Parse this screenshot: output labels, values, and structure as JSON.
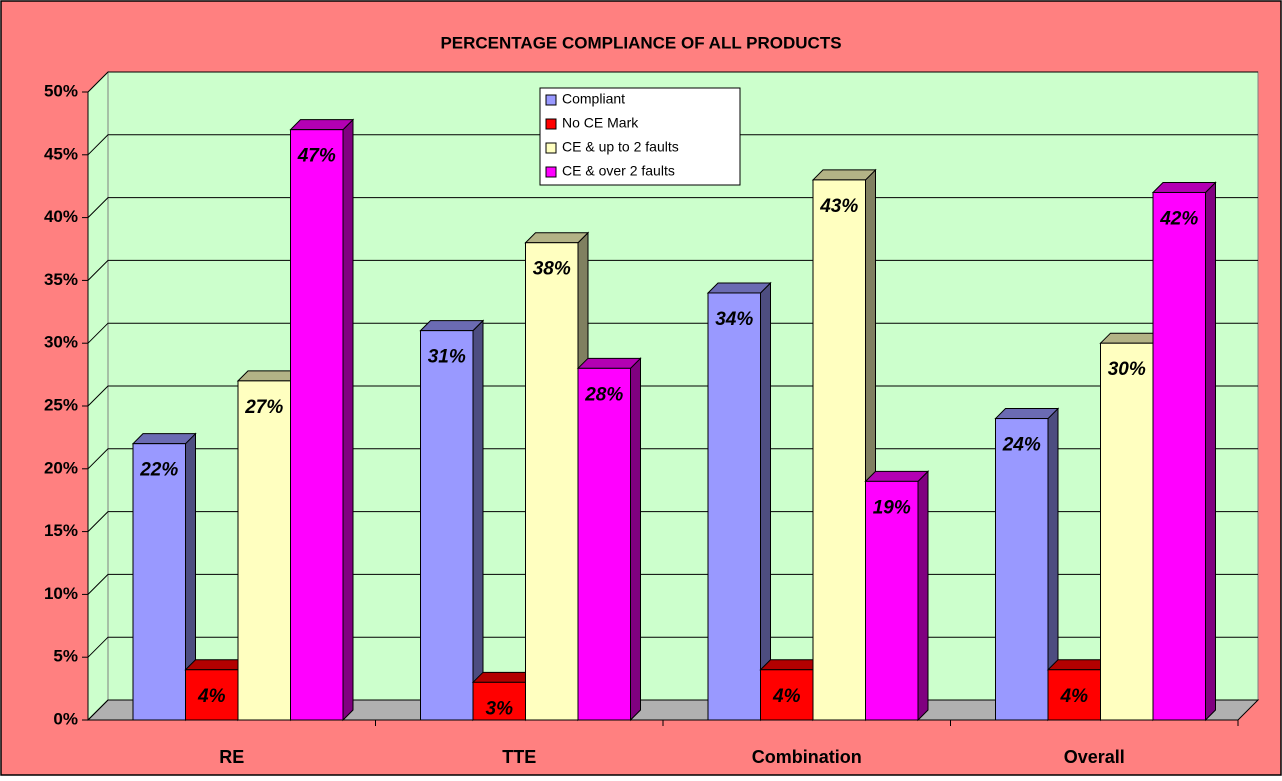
{
  "chart_data": {
    "type": "bar3d",
    "title": "PERCENTAGE COMPLIANCE OF ALL PRODUCTS",
    "categories": [
      "RE",
      "TTE",
      "Combination",
      "Overall"
    ],
    "series": [
      {
        "name": "Compliant",
        "color": "#9999FF",
        "values": [
          22,
          31,
          34,
          24
        ],
        "value_labels": [
          "22%",
          "31%",
          "34%",
          "24%"
        ]
      },
      {
        "name": "No CE Mark",
        "color": "#FF0000",
        "values": [
          4,
          3,
          4,
          4
        ],
        "value_labels": [
          "4%",
          "3%",
          "4%",
          "4%"
        ]
      },
      {
        "name": "CE & up to 2 faults",
        "color": "#FFFFC0",
        "values": [
          27,
          38,
          43,
          30
        ],
        "value_labels": [
          "27%",
          "38%",
          "43%",
          "30%"
        ]
      },
      {
        "name": "CE & over 2 faults",
        "color": "#FF00FF",
        "values": [
          47,
          28,
          19,
          42
        ],
        "value_labels": [
          "47%",
          "28%",
          "19%",
          "42%"
        ]
      }
    ],
    "ylim": [
      0,
      50
    ],
    "yticks": [
      {
        "value": 0,
        "label": "0%"
      },
      {
        "value": 5,
        "label": "5%"
      },
      {
        "value": 10,
        "label": "10%"
      },
      {
        "value": 15,
        "label": "15%"
      },
      {
        "value": 20,
        "label": "20%"
      },
      {
        "value": 25,
        "label": "25%"
      },
      {
        "value": 30,
        "label": "30%"
      },
      {
        "value": 35,
        "label": "35%"
      },
      {
        "value": 40,
        "label": "40%"
      },
      {
        "value": 45,
        "label": "45%"
      },
      {
        "value": 50,
        "label": "50%"
      }
    ],
    "grid": true
  }
}
